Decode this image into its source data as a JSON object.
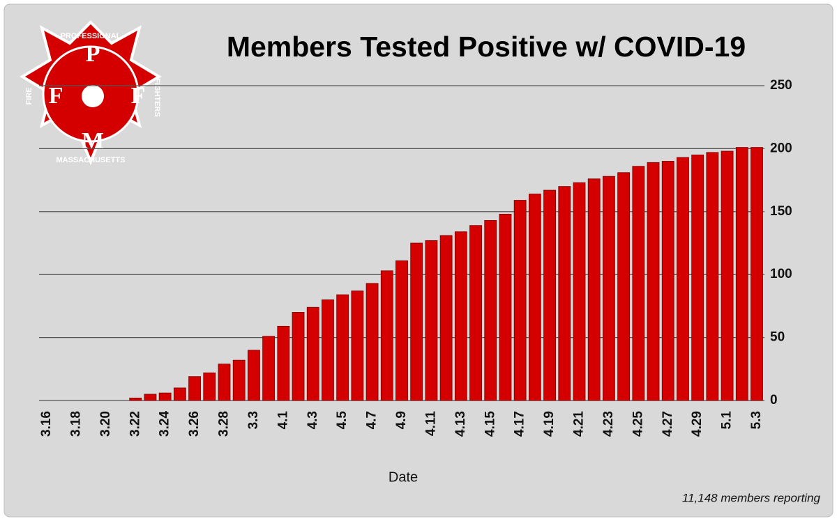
{
  "chart_data": {
    "type": "bar",
    "title": "Members Tested Positive w/ COVID-19",
    "x_label": "Date",
    "note": "11,148 members reporting",
    "logo": {
      "top": "PROFESSIONAL",
      "left": "FIRE",
      "right": "FIGHTERS",
      "bottom": "MASSACHUSETTS",
      "letters": [
        "P",
        "F",
        "F",
        "M"
      ]
    },
    "categories": [
      "3.16",
      null,
      "3.18",
      null,
      "3.20",
      null,
      "3.22",
      null,
      "3.24",
      null,
      "3.26",
      null,
      "3.28",
      null,
      "3.3",
      null,
      "4.1",
      null,
      "4.3",
      null,
      "4.5",
      null,
      "4.7",
      null,
      "4.9",
      null,
      "4.11",
      null,
      "4.13",
      null,
      "4.15",
      null,
      "4.17",
      null,
      "4.19",
      null,
      "4.21",
      null,
      "4.23",
      null,
      "4.25",
      null,
      "4.27",
      null,
      "4.29",
      null,
      "5.1",
      null,
      "5.3"
    ],
    "values": [
      0,
      0,
      0,
      0,
      0,
      0,
      2,
      5,
      6,
      10,
      19,
      22,
      29,
      32,
      40,
      51,
      59,
      70,
      74,
      80,
      84,
      87,
      93,
      103,
      111,
      125,
      127,
      131,
      134,
      139,
      143,
      148,
      159,
      164,
      167,
      170,
      173,
      176,
      178,
      181,
      186,
      189,
      190,
      193,
      195,
      197,
      198,
      201,
      201
    ],
    "color": "#d40000",
    "ylim": [
      0,
      250
    ],
    "yticks": [
      0,
      50,
      100,
      150,
      200,
      250
    ],
    "grid": true,
    "y_axis_side": "right"
  }
}
